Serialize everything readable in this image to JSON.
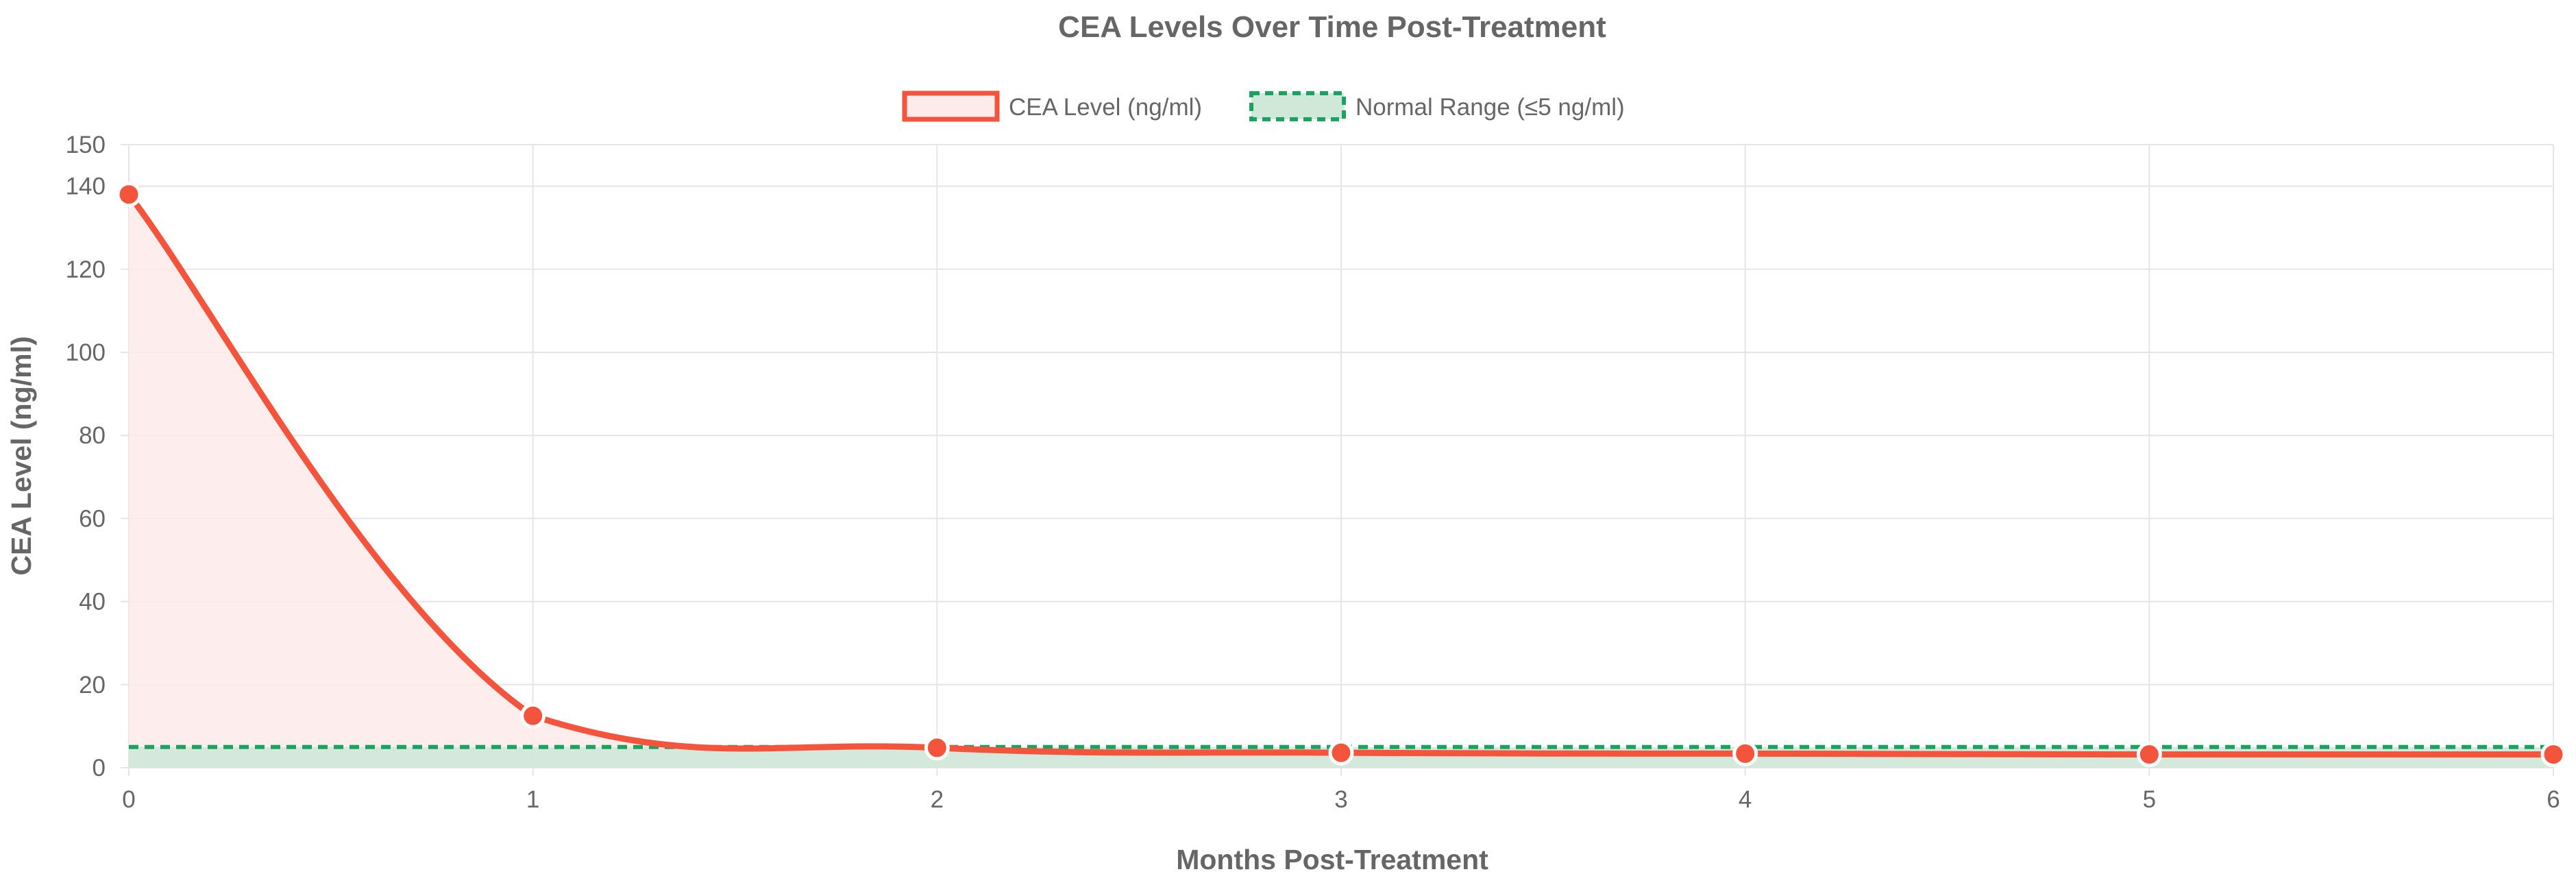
{
  "chart_data": {
    "type": "line",
    "title": "CEA Levels Over Time Post-Treatment",
    "xlabel": "Months Post-Treatment",
    "ylabel": "CEA Level (ng/ml)",
    "x": [
      0,
      1,
      2,
      3,
      4,
      5,
      6
    ],
    "xlim": [
      0,
      6
    ],
    "ylim": [
      0,
      150
    ],
    "x_ticks": [
      "0",
      "1",
      "2",
      "3",
      "4",
      "5",
      "6"
    ],
    "y_ticks": [
      "0",
      "20",
      "40",
      "60",
      "80",
      "100",
      "120",
      "140",
      "150"
    ],
    "grid": true,
    "legend_position": "top",
    "series": [
      {
        "name": "CEA Level (ng/ml)",
        "values": [
          138,
          12.5,
          4.8,
          3.6,
          3.4,
          3.2,
          3.2
        ],
        "color": "#f4533c",
        "fill": "#fdeaea",
        "style": "solid",
        "markers": true
      },
      {
        "name": "Normal Range (≤5 ng/ml)",
        "values": [
          5,
          5,
          5,
          5,
          5,
          5,
          5
        ],
        "color": "#1aa35f",
        "fill": "#cfe8d8",
        "style": "dashed",
        "markers": false
      }
    ]
  }
}
